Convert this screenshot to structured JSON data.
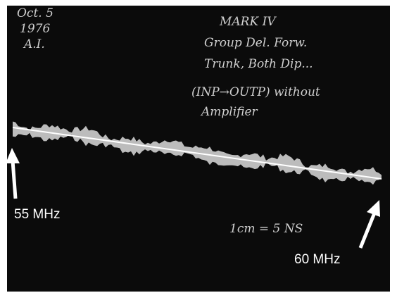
{
  "handwritten": {
    "date": [
      "Oct. 5",
      "1976",
      "A.I."
    ],
    "notes": [
      "MARK IV",
      "Group Del. Forw.",
      "Trunk, Both Dip...",
      "(INP→OUTP) without",
      "Amplifier"
    ],
    "scale": "1cm = 5 NS"
  },
  "labels": {
    "start": "55 MHz",
    "end": "60 MHz"
  }
}
